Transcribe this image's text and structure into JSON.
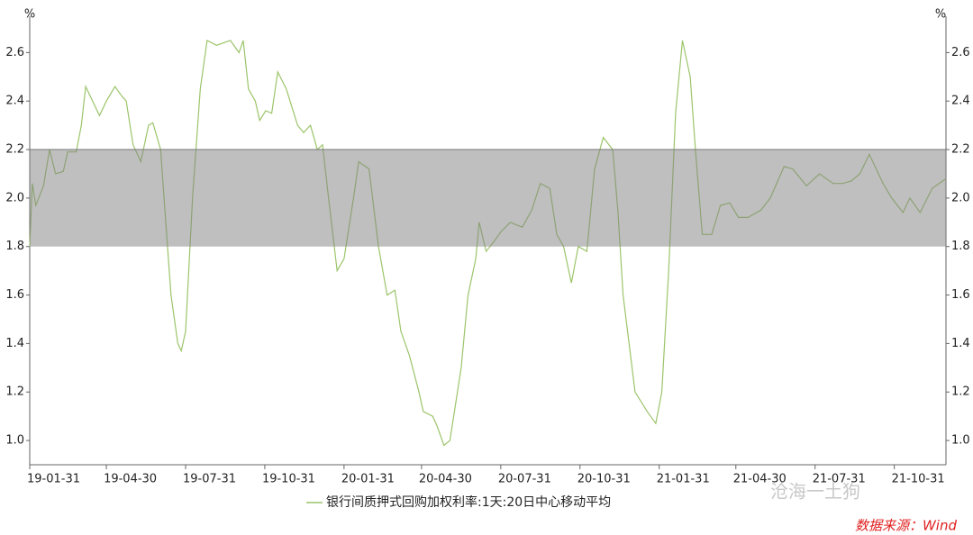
{
  "chart_data": {
    "type": "line",
    "y_unit": "%",
    "x": [
      "2019-01-31",
      "2019-02-03",
      "2019-02-07",
      "2019-02-16",
      "2019-02-23",
      "2019-03-02",
      "2019-03-11",
      "2019-03-16",
      "2019-03-26",
      "2019-04-01",
      "2019-04-06",
      "2019-04-14",
      "2019-04-22",
      "2019-04-30",
      "2019-05-10",
      "2019-05-18",
      "2019-05-23",
      "2019-05-31",
      "2019-06-09",
      "2019-06-18",
      "2019-06-23",
      "2019-07-02",
      "2019-07-08",
      "2019-07-14",
      "2019-07-22",
      "2019-07-26",
      "2019-07-31",
      "2019-08-08",
      "2019-08-17",
      "2019-08-25",
      "2019-09-05",
      "2019-09-21",
      "2019-10-01",
      "2019-10-06",
      "2019-10-12",
      "2019-10-20",
      "2019-10-25",
      "2019-11-01",
      "2019-11-08",
      "2019-11-15",
      "2019-11-25",
      "2019-12-08",
      "2019-12-15",
      "2019-12-23",
      "2019-12-31",
      "2020-01-06",
      "2020-01-13",
      "2020-01-23",
      "2020-01-31",
      "2020-02-11",
      "2020-02-17",
      "2020-02-29",
      "2020-03-11",
      "2020-03-21",
      "2020-03-30",
      "2020-04-06",
      "2020-04-16",
      "2020-04-27",
      "2020-05-02",
      "2020-05-13",
      "2020-05-18",
      "2020-05-26",
      "2020-06-02",
      "2020-06-15",
      "2020-06-23",
      "2020-07-02",
      "2020-07-06",
      "2020-07-14",
      "2020-07-23",
      "2020-07-31",
      "2020-08-11",
      "2020-08-25",
      "2020-09-05",
      "2020-09-15",
      "2020-09-26",
      "2020-10-04",
      "2020-10-12",
      "2020-10-21",
      "2020-10-29",
      "2020-11-08",
      "2020-11-17",
      "2020-11-27",
      "2020-12-08",
      "2020-12-14",
      "2020-12-20",
      "2021-01-03",
      "2021-01-17",
      "2021-01-27",
      "2021-02-03",
      "2021-02-11",
      "2021-02-19",
      "2021-02-27",
      "2021-03-08",
      "2021-03-14",
      "2021-03-22",
      "2021-04-02",
      "2021-04-12",
      "2021-04-23",
      "2021-05-03",
      "2021-05-14",
      "2021-05-29",
      "2021-06-09",
      "2021-06-25",
      "2021-07-05",
      "2021-07-21",
      "2021-08-05",
      "2021-08-21",
      "2021-09-01",
      "2021-09-11",
      "2021-09-21",
      "2021-10-02",
      "2021-10-18",
      "2021-10-28",
      "2021-11-10",
      "2021-11-18",
      "2021-11-30",
      "2021-12-14",
      "2021-12-30"
    ],
    "series": [
      {
        "name": "银行间质押式回购加权利率:1天:20日中心移动平均",
        "color": "#9cc46a",
        "values": [
          1.8,
          2.06,
          1.97,
          2.05,
          2.2,
          2.1,
          2.11,
          2.19,
          2.19,
          2.3,
          2.46,
          2.4,
          2.34,
          2.4,
          2.46,
          2.42,
          2.4,
          2.22,
          2.15,
          2.3,
          2.31,
          2.2,
          1.9,
          1.6,
          1.4,
          1.37,
          1.45,
          2.0,
          2.45,
          2.65,
          2.63,
          2.65,
          2.6,
          2.65,
          2.45,
          2.4,
          2.32,
          2.36,
          2.35,
          2.52,
          2.45,
          2.3,
          2.27,
          2.3,
          2.2,
          2.22,
          2.0,
          1.7,
          1.75,
          2.0,
          2.15,
          2.12,
          1.8,
          1.6,
          1.62,
          1.45,
          1.35,
          1.2,
          1.12,
          1.1,
          1.06,
          0.98,
          1.0,
          1.3,
          1.6,
          1.75,
          1.9,
          1.78,
          1.82,
          1.86,
          1.9,
          1.88,
          1.95,
          2.06,
          2.04,
          1.85,
          1.8,
          1.65,
          1.8,
          1.78,
          2.12,
          2.25,
          2.2,
          1.95,
          1.6,
          1.2,
          1.12,
          1.07,
          1.2,
          1.7,
          2.35,
          2.65,
          2.5,
          2.2,
          1.85,
          1.85,
          1.97,
          1.98,
          1.92,
          1.92,
          1.95,
          2.0,
          2.13,
          2.12,
          2.05,
          2.1,
          2.06,
          2.06,
          2.07,
          2.1,
          2.18,
          2.06,
          2.0,
          1.94,
          2.0,
          1.94,
          2.04,
          2.08
        ]
      }
    ],
    "xlim": [
      "2019-01-31",
      "2021-12-30"
    ],
    "xticks": [
      {
        "value": "2019-01-31",
        "label": "19-01-31"
      },
      {
        "value": "2019-04-30",
        "label": "19-04-30"
      },
      {
        "value": "2019-07-31",
        "label": "19-07-31"
      },
      {
        "value": "2019-10-31",
        "label": "19-10-31"
      },
      {
        "value": "2020-01-31",
        "label": "20-01-31"
      },
      {
        "value": "2020-04-30",
        "label": "20-04-30"
      },
      {
        "value": "2020-07-31",
        "label": "20-07-31"
      },
      {
        "value": "2020-10-31",
        "label": "20-10-31"
      },
      {
        "value": "2021-01-31",
        "label": "21-01-31"
      },
      {
        "value": "2021-04-30",
        "label": "21-04-30"
      },
      {
        "value": "2021-07-31",
        "label": "21-07-31"
      },
      {
        "value": "2021-10-31",
        "label": "21-10-31"
      }
    ],
    "ylim": [
      0.9,
      2.75
    ],
    "yticks": [
      {
        "value": 1,
        "label": "1.0"
      },
      1.2,
      1.4,
      1.6,
      1.8,
      {
        "value": 2,
        "label": "2.0"
      },
      2.2,
      2.4,
      2.6
    ],
    "shaded_range": [
      1.8,
      2.2
    ],
    "shaded_color": "#808080",
    "watermark": "沧海一土狗",
    "source": "数据来源：Wind"
  }
}
